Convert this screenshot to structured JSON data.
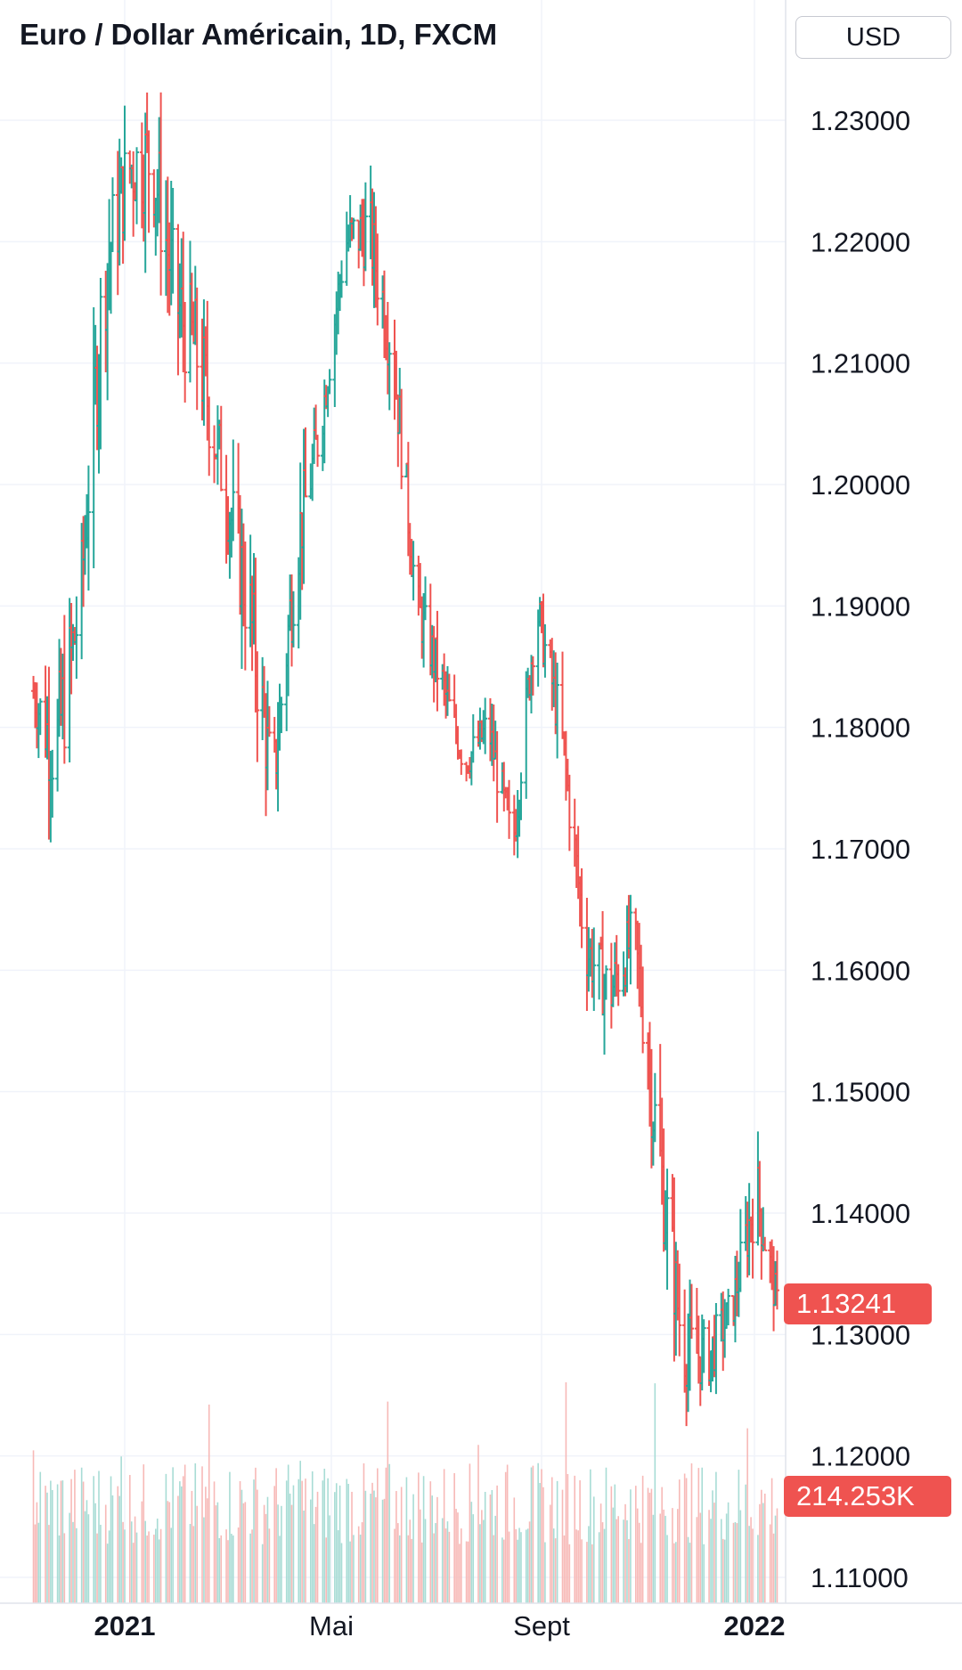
{
  "header": {
    "title": "Euro / Dollar Américain, 1D, FXCM",
    "currency_button_label": "USD"
  },
  "price_axis": {
    "tick_labels": [
      "1.23000",
      "1.22000",
      "1.21000",
      "1.20000",
      "1.19000",
      "1.18000",
      "1.17000",
      "1.16000",
      "1.15000",
      "1.14000",
      "1.13000",
      "1.12000",
      "1.11000"
    ]
  },
  "time_axis": {
    "tick_labels": [
      "2021",
      "Mai",
      "Sept",
      "2022"
    ]
  },
  "badges": {
    "last_price": "1.13241",
    "last_volume": "214.253K"
  },
  "colors": {
    "up": "#26a69a",
    "down": "#ef5350",
    "volume_up": "#a8dcd5",
    "volume_down": "#f7b9b7",
    "grid": "#f0f3fa",
    "axis_border": "#e0e3eb",
    "text": "#131722"
  },
  "chart_data": {
    "type": "line",
    "chart_style": "ohlc-bars",
    "title": "Euro / Dollar Américain, 1D, FXCM",
    "symbol": "Euro / Dollar Américain",
    "interval": "1D",
    "source": "FXCM",
    "currency": "USD",
    "ylabel": "",
    "xlabel": "",
    "ylim": [
      1.105,
      1.24
    ],
    "y_ticks": [
      1.23,
      1.22,
      1.21,
      1.2,
      1.19,
      1.18,
      1.17,
      1.16,
      1.15,
      1.14,
      1.13,
      1.12,
      1.11
    ],
    "x_ticks": [
      {
        "label": "2021",
        "date": "2021-01-01"
      },
      {
        "label": "Mai",
        "date": "2021-05-01"
      },
      {
        "label": "Sept",
        "date": "2021-09-01"
      },
      {
        "label": "2022",
        "date": "2022-01-01"
      }
    ],
    "grid": true,
    "last_price": 1.13241,
    "last_volume": "214.253K",
    "series": [
      {
        "name": "Euro / Dollar Américain",
        "type": "ohlc",
        "x": [
          "2020-11-08",
          "2020-11-22",
          "2020-12-06",
          "2020-12-20",
          "2021-01-03",
          "2021-01-17",
          "2021-01-31",
          "2021-02-14",
          "2021-02-28",
          "2021-03-14",
          "2021-03-28",
          "2021-04-11",
          "2021-04-25",
          "2021-05-09",
          "2021-05-23",
          "2021-06-06",
          "2021-06-20",
          "2021-07-04",
          "2021-07-18",
          "2021-08-01",
          "2021-08-15",
          "2021-08-29",
          "2021-09-12",
          "2021-09-26",
          "2021-10-10",
          "2021-10-24",
          "2021-11-07",
          "2021-11-21",
          "2021-12-05",
          "2021-12-19",
          "2022-01-02",
          "2022-01-14"
        ],
        "y": [
          1.183,
          1.178,
          1.19,
          1.217,
          1.226,
          1.227,
          1.215,
          1.21,
          1.2,
          1.19,
          1.175,
          1.195,
          1.205,
          1.22,
          1.221,
          1.211,
          1.19,
          1.184,
          1.177,
          1.18,
          1.17,
          1.19,
          1.18,
          1.162,
          1.158,
          1.163,
          1.145,
          1.129,
          1.128,
          1.132,
          1.142,
          1.1324
        ],
        "high": [
          1.187,
          1.192,
          1.196,
          1.225,
          1.235,
          1.231,
          1.221,
          1.219,
          1.204,
          1.1985,
          1.188,
          1.208,
          1.214,
          1.225,
          1.227,
          1.218,
          1.198,
          1.189,
          1.183,
          1.183,
          1.18,
          1.191,
          1.185,
          1.168,
          1.169,
          1.165,
          1.161,
          1.138,
          1.136,
          1.138,
          1.1485,
          1.142
        ],
        "low": [
          1.178,
          1.162,
          1.175,
          1.196,
          1.214,
          1.204,
          1.196,
          1.193,
          1.186,
          1.17,
          1.1705,
          1.186,
          1.202,
          1.211,
          1.209,
          1.199,
          1.185,
          1.176,
          1.175,
          1.171,
          1.167,
          1.179,
          1.171,
          1.153,
          1.152,
          1.151,
          1.135,
          1.119,
          1.122,
          1.127,
          1.13,
          1.132
        ]
      }
    ]
  }
}
